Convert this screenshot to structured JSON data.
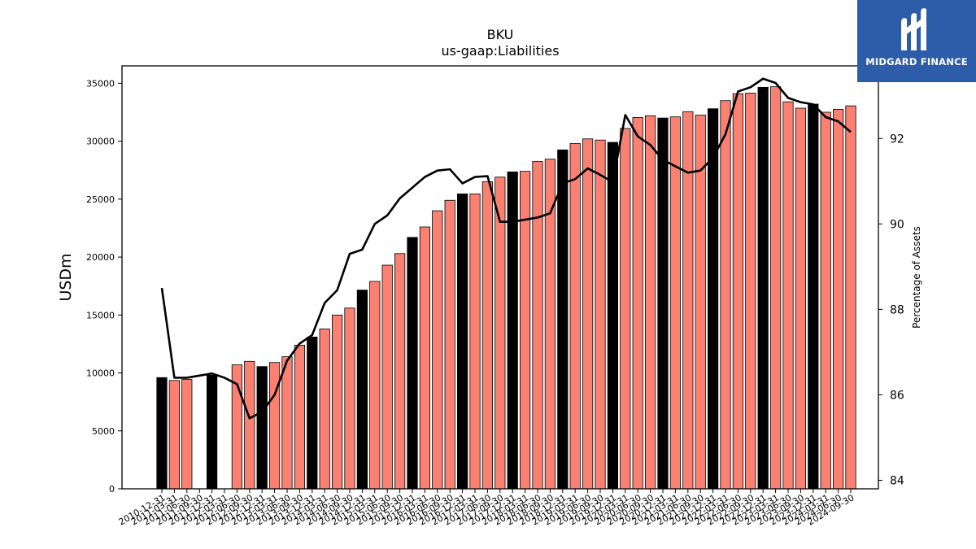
{
  "chart_data": {
    "type": "bar",
    "title": "BKU",
    "subtitle": "us-gaap:Liabilities",
    "ylabel": "USDm",
    "y2label": "Percentage of Assets",
    "ylim": [
      0,
      36500
    ],
    "y2lim": [
      83.8,
      93.7
    ],
    "yticks": [
      0,
      5000,
      10000,
      15000,
      20000,
      25000,
      30000,
      35000
    ],
    "y2ticks": [
      84,
      86,
      88,
      90,
      92
    ],
    "grid": false,
    "colors": {
      "annual": "#000000",
      "quarterly": "#fa8072",
      "line": "#000000"
    },
    "categories": [
      "2010-12-31",
      "2011-03-31",
      "2011-06-30",
      "2011-09-30",
      "2011-12-31",
      "2012-03-31",
      "2012-06-30",
      "2012-09-30",
      "2012-12-31",
      "2013-03-31",
      "2013-06-30",
      "2013-09-30",
      "2013-12-31",
      "2014-03-31",
      "2014-06-30",
      "2014-09-30",
      "2014-12-31",
      "2015-03-31",
      "2015-06-30",
      "2015-09-30",
      "2015-12-31",
      "2016-03-31",
      "2016-06-30",
      "2016-09-30",
      "2016-12-31",
      "2017-03-31",
      "2017-06-30",
      "2017-09-30",
      "2017-12-31",
      "2018-03-31",
      "2018-06-30",
      "2018-09-30",
      "2018-12-31",
      "2019-03-31",
      "2019-06-30",
      "2019-09-30",
      "2019-12-31",
      "2020-03-31",
      "2020-06-30",
      "2020-09-30",
      "2020-12-31",
      "2021-03-31",
      "2021-06-30",
      "2021-09-30",
      "2021-12-31",
      "2022-03-31",
      "2022-06-30",
      "2022-09-30",
      "2022-12-31",
      "2023-03-31",
      "2023-06-30",
      "2023-09-30",
      "2023-12-31",
      "2024-03-31",
      "2024-06-30",
      "2024-09-30"
    ],
    "bar_kind": [
      "annual",
      "quarterly",
      "quarterly",
      "none",
      "annual",
      "quarterly",
      "quarterly",
      "quarterly",
      "annual",
      "quarterly",
      "quarterly",
      "quarterly",
      "annual",
      "quarterly",
      "quarterly",
      "quarterly",
      "annual",
      "quarterly",
      "quarterly",
      "quarterly",
      "annual",
      "quarterly",
      "quarterly",
      "quarterly",
      "annual",
      "quarterly",
      "quarterly",
      "quarterly",
      "annual",
      "quarterly",
      "quarterly",
      "quarterly",
      "annual",
      "quarterly",
      "quarterly",
      "quarterly",
      "annual",
      "quarterly",
      "quarterly",
      "quarterly",
      "annual",
      "quarterly",
      "quarterly",
      "quarterly",
      "annual",
      "quarterly",
      "quarterly",
      "quarterly",
      "annual",
      "quarterly",
      "quarterly",
      "quarterly",
      "annual",
      "quarterly",
      "quarterly",
      "quarterly"
    ],
    "series": [
      {
        "name": "Liabilities",
        "axis": "left",
        "values": [
          9600,
          9350,
          9450,
          null,
          9800,
          null,
          10700,
          11000,
          10550,
          10900,
          11400,
          12400,
          13100,
          13800,
          15000,
          15600,
          17150,
          17900,
          19300,
          20300,
          21700,
          22600,
          24000,
          24900,
          25450,
          25450,
          26500,
          26900,
          27350,
          27400,
          28250,
          28450,
          29250,
          29800,
          30200,
          30100,
          29900,
          31100,
          32050,
          32200,
          32000,
          32100,
          32550,
          32250,
          32800,
          33500,
          34100,
          34150,
          34650,
          34700,
          33400,
          32850,
          33200,
          32500,
          32750,
          33050
        ]
      },
      {
        "name": "Percentage of Assets",
        "axis": "right",
        "values": [
          88.5,
          86.4,
          86.4,
          86.45,
          86.5,
          86.4,
          86.25,
          85.45,
          85.6,
          86.0,
          86.8,
          87.2,
          87.4,
          88.15,
          88.45,
          89.3,
          89.4,
          90.0,
          90.2,
          90.6,
          90.85,
          91.1,
          91.25,
          91.28,
          90.95,
          91.1,
          91.12,
          90.05,
          90.05,
          90.1,
          90.15,
          90.25,
          90.95,
          91.05,
          91.3,
          91.15,
          90.98,
          92.55,
          92.05,
          91.85,
          91.5,
          91.35,
          91.2,
          91.25,
          91.55,
          92.1,
          93.1,
          93.2,
          93.4,
          93.3,
          92.95,
          92.85,
          92.8,
          92.5,
          92.4,
          92.15
        ]
      }
    ]
  },
  "logo": {
    "text": "MIDGARD FINANCE"
  }
}
